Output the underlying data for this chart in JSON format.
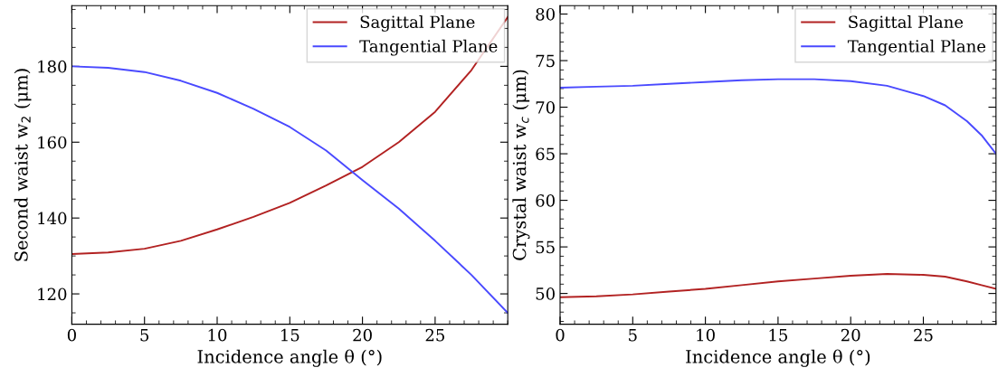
{
  "chart_data": [
    {
      "type": "line",
      "xlabel": "Incidence angle θ (°)",
      "ylabel": "Second waist w$_{2}$ (μm)",
      "x": [
        0,
        2.5,
        5,
        7.5,
        10,
        12.5,
        15,
        17.5,
        20,
        22.5,
        25,
        27.5,
        30
      ],
      "series": [
        {
          "name": "Sagittal Plane",
          "color": "#b22222",
          "values": [
            130.5,
            130.9,
            131.9,
            134,
            137,
            140.3,
            144,
            148.6,
            153.5,
            160,
            168,
            179,
            193
          ]
        },
        {
          "name": "Tangential Plane",
          "color": "#4a4aff",
          "values": [
            180,
            179.6,
            178.5,
            176.2,
            173,
            168.8,
            164,
            157.8,
            150,
            142.5,
            134,
            125,
            115
          ]
        }
      ],
      "xlim": [
        0,
        30
      ],
      "ylim": [
        112,
        196
      ],
      "xticks": [
        0,
        5,
        10,
        15,
        20,
        25
      ],
      "yticks": [
        120,
        140,
        160,
        180
      ],
      "grid": false,
      "legend": "top right"
    },
    {
      "type": "line",
      "xlabel": "Incidence angle θ (°)",
      "ylabel": "Crystal waist w$_{c}$ (μm)",
      "x": [
        0,
        2.5,
        5,
        7.5,
        10,
        12.5,
        15,
        17.5,
        20,
        22.5,
        25,
        26.5,
        28,
        29,
        30
      ],
      "series": [
        {
          "name": "Sagittal Plane",
          "color": "#b22222",
          "values": [
            49.6,
            49.7,
            49.9,
            50.2,
            50.5,
            50.9,
            51.3,
            51.6,
            51.9,
            52.1,
            52.0,
            51.8,
            51.3,
            50.9,
            50.5
          ]
        },
        {
          "name": "Tangential Plane",
          "color": "#4a4aff",
          "values": [
            72.1,
            72.2,
            72.3,
            72.5,
            72.7,
            72.9,
            73.0,
            73.0,
            72.8,
            72.3,
            71.2,
            70.2,
            68.5,
            67.0,
            65.0
          ]
        }
      ],
      "xlim": [
        0,
        30
      ],
      "ylim": [
        46.7,
        80.9
      ],
      "xticks": [
        0,
        5,
        10,
        15,
        20,
        25
      ],
      "yticks": [
        50,
        55,
        60,
        65,
        70,
        75,
        80
      ],
      "grid": false,
      "legend": "top right"
    }
  ]
}
